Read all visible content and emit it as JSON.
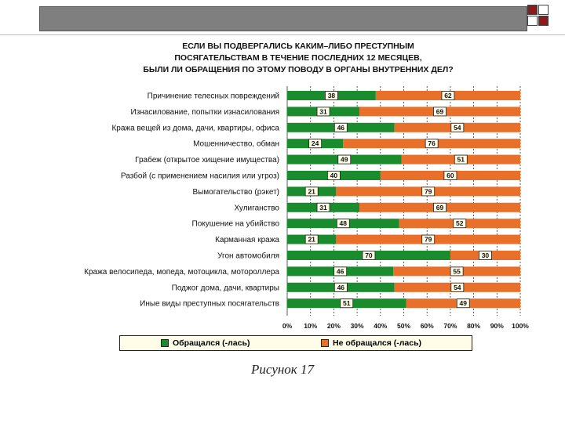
{
  "caption": "Рисунок 17",
  "colors": {
    "applied": "#1a8c2e",
    "not_applied": "#e8702a",
    "header_band": "#7f7f7f",
    "square_accent": "#8b1a1a",
    "legend_bg": "#fffde7"
  },
  "chart_data": {
    "type": "bar",
    "orientation": "horizontal-stacked-100",
    "title": [
      "ЕСЛИ ВЫ ПОДВЕРГАЛИСЬ КАКИМ–ЛИБО ПРЕСТУПНЫМ",
      "ПОСЯГАТЕЛЬСТВАМ В ТЕЧЕНИЕ ПОСЛЕДНИХ 12 МЕСЯЦЕВ,",
      "БЫЛИ ЛИ ОБРАЩЕНИЯ ПО ЭТОМУ ПОВОДУ В ОРГАНЫ ВНУТРЕННИХ ДЕЛ?"
    ],
    "categories": [
      "Причинение телесных повреждений",
      "Изнасилование, попытки изнасилования",
      "Кража вещей из дома, дачи, квартиры, офиса",
      "Мошенничество, обман",
      "Грабеж (открытое хищение имущества)",
      "Разбой (с применением насилия или угроз)",
      "Вымогательство (рэкет)",
      "Хулиганство",
      "Покушение на убийство",
      "Карманная кража",
      "Угон автомобиля",
      "Кража велосипеда, мопеда, мотоцикла, мотороллера",
      "Поджог дома, дачи, квартиры",
      "Иные виды преступных посягательств"
    ],
    "series": [
      {
        "name": "Обращался (-лась)",
        "values": [
          38,
          31,
          46,
          24,
          49,
          40,
          21,
          31,
          48,
          21,
          70,
          46,
          46,
          51
        ]
      },
      {
        "name": "Не обращался (-лась)",
        "values": [
          62,
          69,
          54,
          76,
          51,
          60,
          79,
          69,
          52,
          79,
          30,
          55,
          54,
          49
        ]
      }
    ],
    "xticks": [
      "0%",
      "10%",
      "20%",
      "30%",
      "40%",
      "50%",
      "60%",
      "70%",
      "80%",
      "90%",
      "100%"
    ],
    "xlim": [
      0,
      100
    ],
    "grid": "vertical dashed",
    "legend_position": "bottom"
  }
}
